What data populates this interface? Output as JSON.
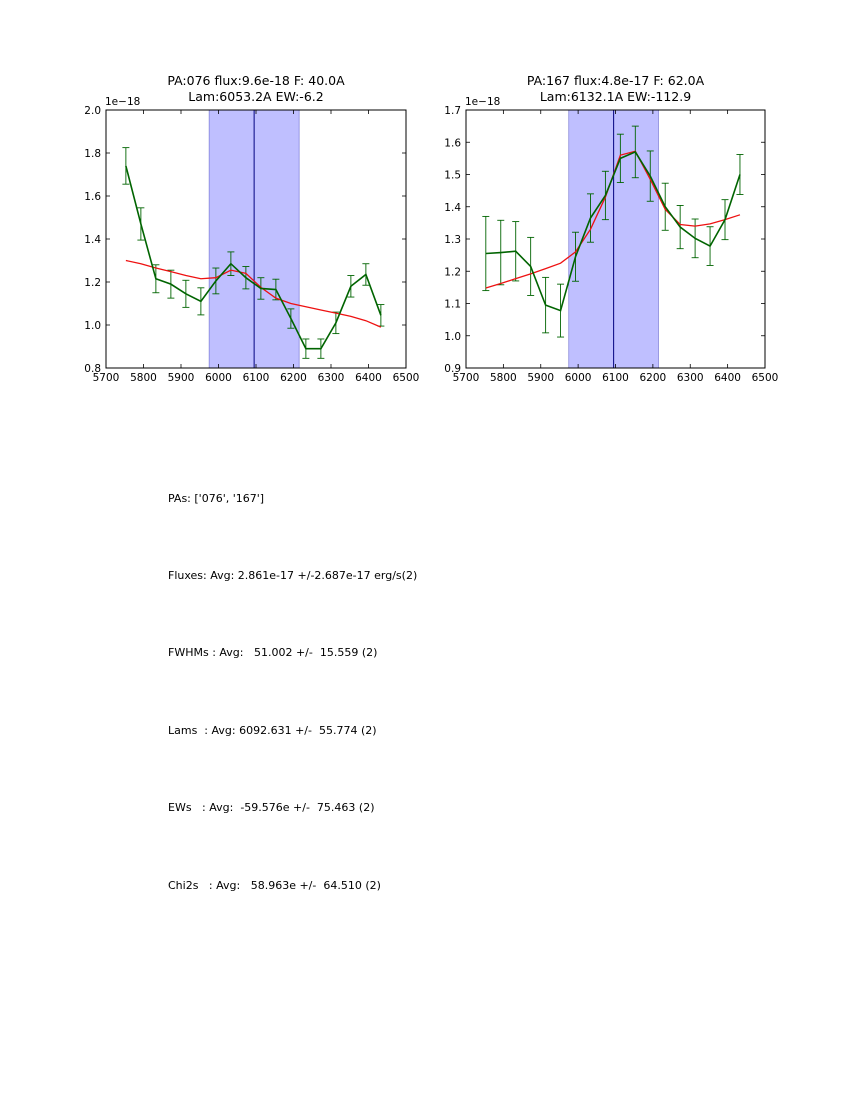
{
  "chart_data": [
    {
      "type": "line",
      "title": "PA:076 flux:9.6e-18 F: 40.0A\nLam:6053.2A EW:-6.2",
      "offset_label": "1e−18",
      "xlabel": "",
      "ylabel": "",
      "xlim": [
        5700,
        6500
      ],
      "ylim": [
        0.8,
        2.0
      ],
      "xticks": [
        5700,
        5800,
        5900,
        6000,
        6100,
        6200,
        6300,
        6400,
        6500
      ],
      "yticks": [
        0.8,
        1.0,
        1.2,
        1.4,
        1.6,
        1.8,
        2.0
      ],
      "xtick_labels": [
        "5700",
        "5800",
        "5900",
        "6000",
        "6100",
        "6200",
        "6300",
        "6400",
        "6500"
      ],
      "ytick_labels": [
        "0.8",
        "1.0",
        "1.2",
        "1.4",
        "1.6",
        "1.8",
        "2.0"
      ],
      "shaded_region": [
        5975,
        6215
      ],
      "vline": 6095,
      "data_series": {
        "name": "data",
        "color": "#006400",
        "x": [
          5753,
          5793,
          5833,
          5873,
          5913,
          5953,
          5993,
          6033,
          6073,
          6113,
          6153,
          6193,
          6233,
          6273,
          6313,
          6353,
          6393,
          6433
        ],
        "y": [
          1.74,
          1.47,
          1.215,
          1.19,
          1.145,
          1.11,
          1.205,
          1.285,
          1.22,
          1.17,
          1.165,
          1.03,
          0.89,
          0.89,
          1.01,
          1.18,
          1.235,
          1.045
        ],
        "err": [
          0.085,
          0.075,
          0.065,
          0.065,
          0.063,
          0.063,
          0.06,
          0.055,
          0.052,
          0.05,
          0.048,
          0.045,
          0.045,
          0.045,
          0.05,
          0.05,
          0.05,
          0.05
        ]
      },
      "fit_series": {
        "name": "fit",
        "color": "#ee1111",
        "x": [
          5753,
          5793,
          5833,
          5873,
          5913,
          5953,
          5993,
          6033,
          6073,
          6113,
          6153,
          6193,
          6233,
          6273,
          6313,
          6353,
          6393,
          6433
        ],
        "y": [
          1.3,
          1.285,
          1.265,
          1.248,
          1.23,
          1.215,
          1.22,
          1.255,
          1.24,
          1.175,
          1.125,
          1.1,
          1.085,
          1.07,
          1.055,
          1.04,
          1.02,
          0.99
        ]
      }
    },
    {
      "type": "line",
      "title": "PA:167 flux:4.8e-17 F: 62.0A\nLam:6132.1A EW:-112.9",
      "offset_label": "1e−18",
      "xlabel": "",
      "ylabel": "",
      "xlim": [
        5700,
        6500
      ],
      "ylim": [
        0.9,
        1.7
      ],
      "xticks": [
        5700,
        5800,
        5900,
        6000,
        6100,
        6200,
        6300,
        6400,
        6500
      ],
      "yticks": [
        0.9,
        1.0,
        1.1,
        1.2,
        1.3,
        1.4,
        1.5,
        1.6,
        1.7
      ],
      "xtick_labels": [
        "5700",
        "5800",
        "5900",
        "6000",
        "6100",
        "6200",
        "6300",
        "6400",
        "6500"
      ],
      "ytick_labels": [
        "0.9",
        "1.0",
        "1.1",
        "1.2",
        "1.3",
        "1.4",
        "1.5",
        "1.6",
        "1.7"
      ],
      "shaded_region": [
        5975,
        6215
      ],
      "vline": 6095,
      "data_series": {
        "name": "data",
        "color": "#006400",
        "x": [
          5753,
          5793,
          5833,
          5873,
          5913,
          5953,
          5993,
          6033,
          6073,
          6113,
          6153,
          6193,
          6233,
          6273,
          6313,
          6353,
          6393,
          6433
        ],
        "y": [
          1.255,
          1.258,
          1.262,
          1.215,
          1.095,
          1.078,
          1.245,
          1.365,
          1.435,
          1.55,
          1.57,
          1.495,
          1.4,
          1.337,
          1.302,
          1.278,
          1.36,
          1.5
        ],
        "err": [
          0.115,
          0.1,
          0.092,
          0.09,
          0.086,
          0.082,
          0.076,
          0.075,
          0.075,
          0.075,
          0.08,
          0.078,
          0.073,
          0.067,
          0.06,
          0.06,
          0.062,
          0.062
        ]
      },
      "fit_series": {
        "name": "fit",
        "color": "#ee1111",
        "x": [
          5753,
          5793,
          5833,
          5873,
          5913,
          5953,
          5993,
          6033,
          6073,
          6113,
          6153,
          6193,
          6233,
          6273,
          6313,
          6353,
          6393,
          6433
        ],
        "y": [
          1.148,
          1.162,
          1.177,
          1.192,
          1.208,
          1.225,
          1.26,
          1.33,
          1.43,
          1.56,
          1.572,
          1.485,
          1.392,
          1.345,
          1.34,
          1.347,
          1.36,
          1.375
        ]
      }
    }
  ],
  "summary": {
    "pas": "PAs: ['076', '167']",
    "fluxes": "Fluxes: Avg: 2.861e-17 +/-2.687e-17 erg/s(2)",
    "fwhms": "FWHMs : Avg:   51.002 +/-  15.559 (2)",
    "lams": "Lams  : Avg: 6092.631 +/-  55.774 (2)",
    "ews": "EWs   : Avg:  -59.576e +/-  75.463 (2)",
    "chi2s": "Chi2s   : Avg:   58.963e +/-  64.510 (2)"
  }
}
